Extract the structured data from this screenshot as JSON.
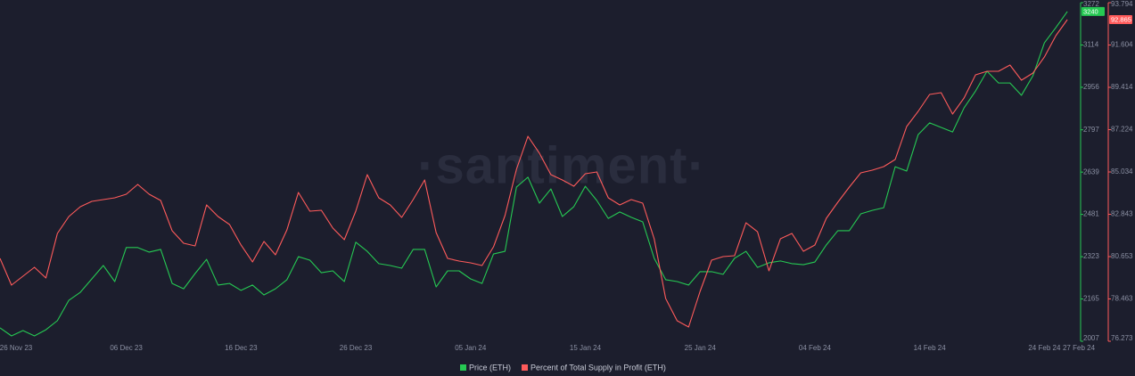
{
  "chart_data": {
    "type": "line",
    "watermark": "·santiment·",
    "x": [
      "2023-11-25",
      "2023-11-26",
      "2023-11-27",
      "2023-11-28",
      "2023-11-29",
      "2023-11-30",
      "2023-12-01",
      "2023-12-02",
      "2023-12-03",
      "2023-12-04",
      "2023-12-05",
      "2023-12-06",
      "2023-12-07",
      "2023-12-08",
      "2023-12-09",
      "2023-12-10",
      "2023-12-11",
      "2023-12-12",
      "2023-12-13",
      "2023-12-14",
      "2023-12-15",
      "2023-12-16",
      "2023-12-17",
      "2023-12-18",
      "2023-12-19",
      "2023-12-20",
      "2023-12-21",
      "2023-12-22",
      "2023-12-23",
      "2023-12-24",
      "2023-12-25",
      "2023-12-26",
      "2023-12-27",
      "2023-12-28",
      "2023-12-29",
      "2023-12-30",
      "2023-12-31",
      "2024-01-01",
      "2024-01-02",
      "2024-01-03",
      "2024-01-04",
      "2024-01-05",
      "2024-01-06",
      "2024-01-07",
      "2024-01-08",
      "2024-01-09",
      "2024-01-10",
      "2024-01-11",
      "2024-01-12",
      "2024-01-13",
      "2024-01-14",
      "2024-01-15",
      "2024-01-16",
      "2024-01-17",
      "2024-01-18",
      "2024-01-19",
      "2024-01-20",
      "2024-01-21",
      "2024-01-22",
      "2024-01-23",
      "2024-01-24",
      "2024-01-25",
      "2024-01-26",
      "2024-01-27",
      "2024-01-28",
      "2024-01-29",
      "2024-01-30",
      "2024-01-31",
      "2024-02-01",
      "2024-02-02",
      "2024-02-03",
      "2024-02-04",
      "2024-02-05",
      "2024-02-06",
      "2024-02-07",
      "2024-02-08",
      "2024-02-09",
      "2024-02-10",
      "2024-02-11",
      "2024-02-12",
      "2024-02-13",
      "2024-02-14",
      "2024-02-15",
      "2024-02-16",
      "2024-02-17",
      "2024-02-18",
      "2024-02-19",
      "2024-02-20",
      "2024-02-21",
      "2024-02-22",
      "2024-02-23",
      "2024-02-24",
      "2024-02-25",
      "2024-02-26"
    ],
    "xlim": [
      "2023-11-25",
      "2024-02-27"
    ],
    "xticks": [
      {
        "value": "2023-11-26",
        "label": "26 Nov 23"
      },
      {
        "value": "2023-12-06",
        "label": "06 Dec 23"
      },
      {
        "value": "2023-12-16",
        "label": "16 Dec 23"
      },
      {
        "value": "2023-12-26",
        "label": "26 Dec 23"
      },
      {
        "value": "2024-01-05",
        "label": "05 Jan 24"
      },
      {
        "value": "2024-01-15",
        "label": "15 Jan 24"
      },
      {
        "value": "2024-01-25",
        "label": "25 Jan 24"
      },
      {
        "value": "2024-02-04",
        "label": "04 Feb 24"
      },
      {
        "value": "2024-02-14",
        "label": "14 Feb 24"
      },
      {
        "value": "2024-02-24",
        "label": "24 Feb 24"
      },
      {
        "value": "2024-02-27",
        "label": "27 Feb 24"
      }
    ],
    "ylim": [
      2007,
      3272
    ],
    "yticks": [
      2007,
      2165,
      2323,
      2481,
      2639,
      2797,
      2956,
      3114,
      3272
    ],
    "y2lim": [
      76.273,
      93.794
    ],
    "y2ticks": [
      76.273,
      78.463,
      80.653,
      82.843,
      85.034,
      87.224,
      89.414,
      91.604,
      93.794
    ],
    "series": [
      {
        "name": "Price (ETH)",
        "color": "#26c953",
        "axis": "y",
        "badge": "3240",
        "values": [
          2057,
          2027,
          2047,
          2027,
          2050,
          2084,
          2160,
          2190,
          2240,
          2290,
          2230,
          2357,
          2357,
          2340,
          2350,
          2223,
          2203,
          2260,
          2313,
          2217,
          2223,
          2197,
          2217,
          2180,
          2203,
          2237,
          2323,
          2310,
          2263,
          2270,
          2230,
          2377,
          2343,
          2297,
          2290,
          2280,
          2350,
          2350,
          2210,
          2270,
          2270,
          2240,
          2223,
          2333,
          2343,
          2583,
          2620,
          2523,
          2576,
          2473,
          2510,
          2586,
          2533,
          2466,
          2490,
          2470,
          2453,
          2317,
          2237,
          2230,
          2217,
          2267,
          2267,
          2257,
          2317,
          2343,
          2283,
          2300,
          2307,
          2297,
          2293,
          2303,
          2367,
          2420,
          2420,
          2483,
          2496,
          2506,
          2659,
          2643,
          2779,
          2823,
          2806,
          2789,
          2879,
          2942,
          3016,
          2972,
          2972,
          2926,
          2999,
          3122,
          3179,
          3239
        ]
      },
      {
        "name": "Percent of Total Supply in Profit (ETH)",
        "color": "#ff5b5b",
        "axis": "y2",
        "badge": "92.865",
        "values": [
          80.561,
          79.178,
          79.639,
          80.1,
          79.547,
          81.852,
          82.728,
          83.235,
          83.512,
          83.604,
          83.696,
          83.881,
          84.388,
          83.881,
          83.558,
          81.99,
          81.345,
          81.207,
          83.328,
          82.728,
          82.313,
          81.253,
          80.377,
          81.437,
          80.746,
          82.037,
          83.973,
          83.005,
          83.051,
          82.129,
          81.529,
          83.005,
          84.895,
          83.696,
          83.328,
          82.682,
          83.604,
          84.619,
          81.898,
          80.561,
          80.423,
          80.331,
          80.192,
          81.16,
          82.774,
          85.172,
          86.878,
          86.002,
          84.895,
          84.619,
          84.296,
          84.941,
          85.034,
          83.696,
          83.328,
          83.604,
          83.42,
          81.575,
          78.486,
          77.333,
          77.011,
          78.855,
          80.469,
          80.653,
          80.699,
          82.405,
          81.944,
          79.916,
          81.575,
          81.852,
          80.93,
          81.253,
          82.636,
          83.466,
          84.25,
          84.987,
          85.126,
          85.31,
          85.679,
          87.385,
          88.169,
          89.045,
          89.137,
          88.031,
          88.861,
          90.059,
          90.244,
          90.244,
          90.567,
          89.783,
          90.152,
          90.982,
          92.088,
          92.918
        ]
      }
    ]
  }
}
